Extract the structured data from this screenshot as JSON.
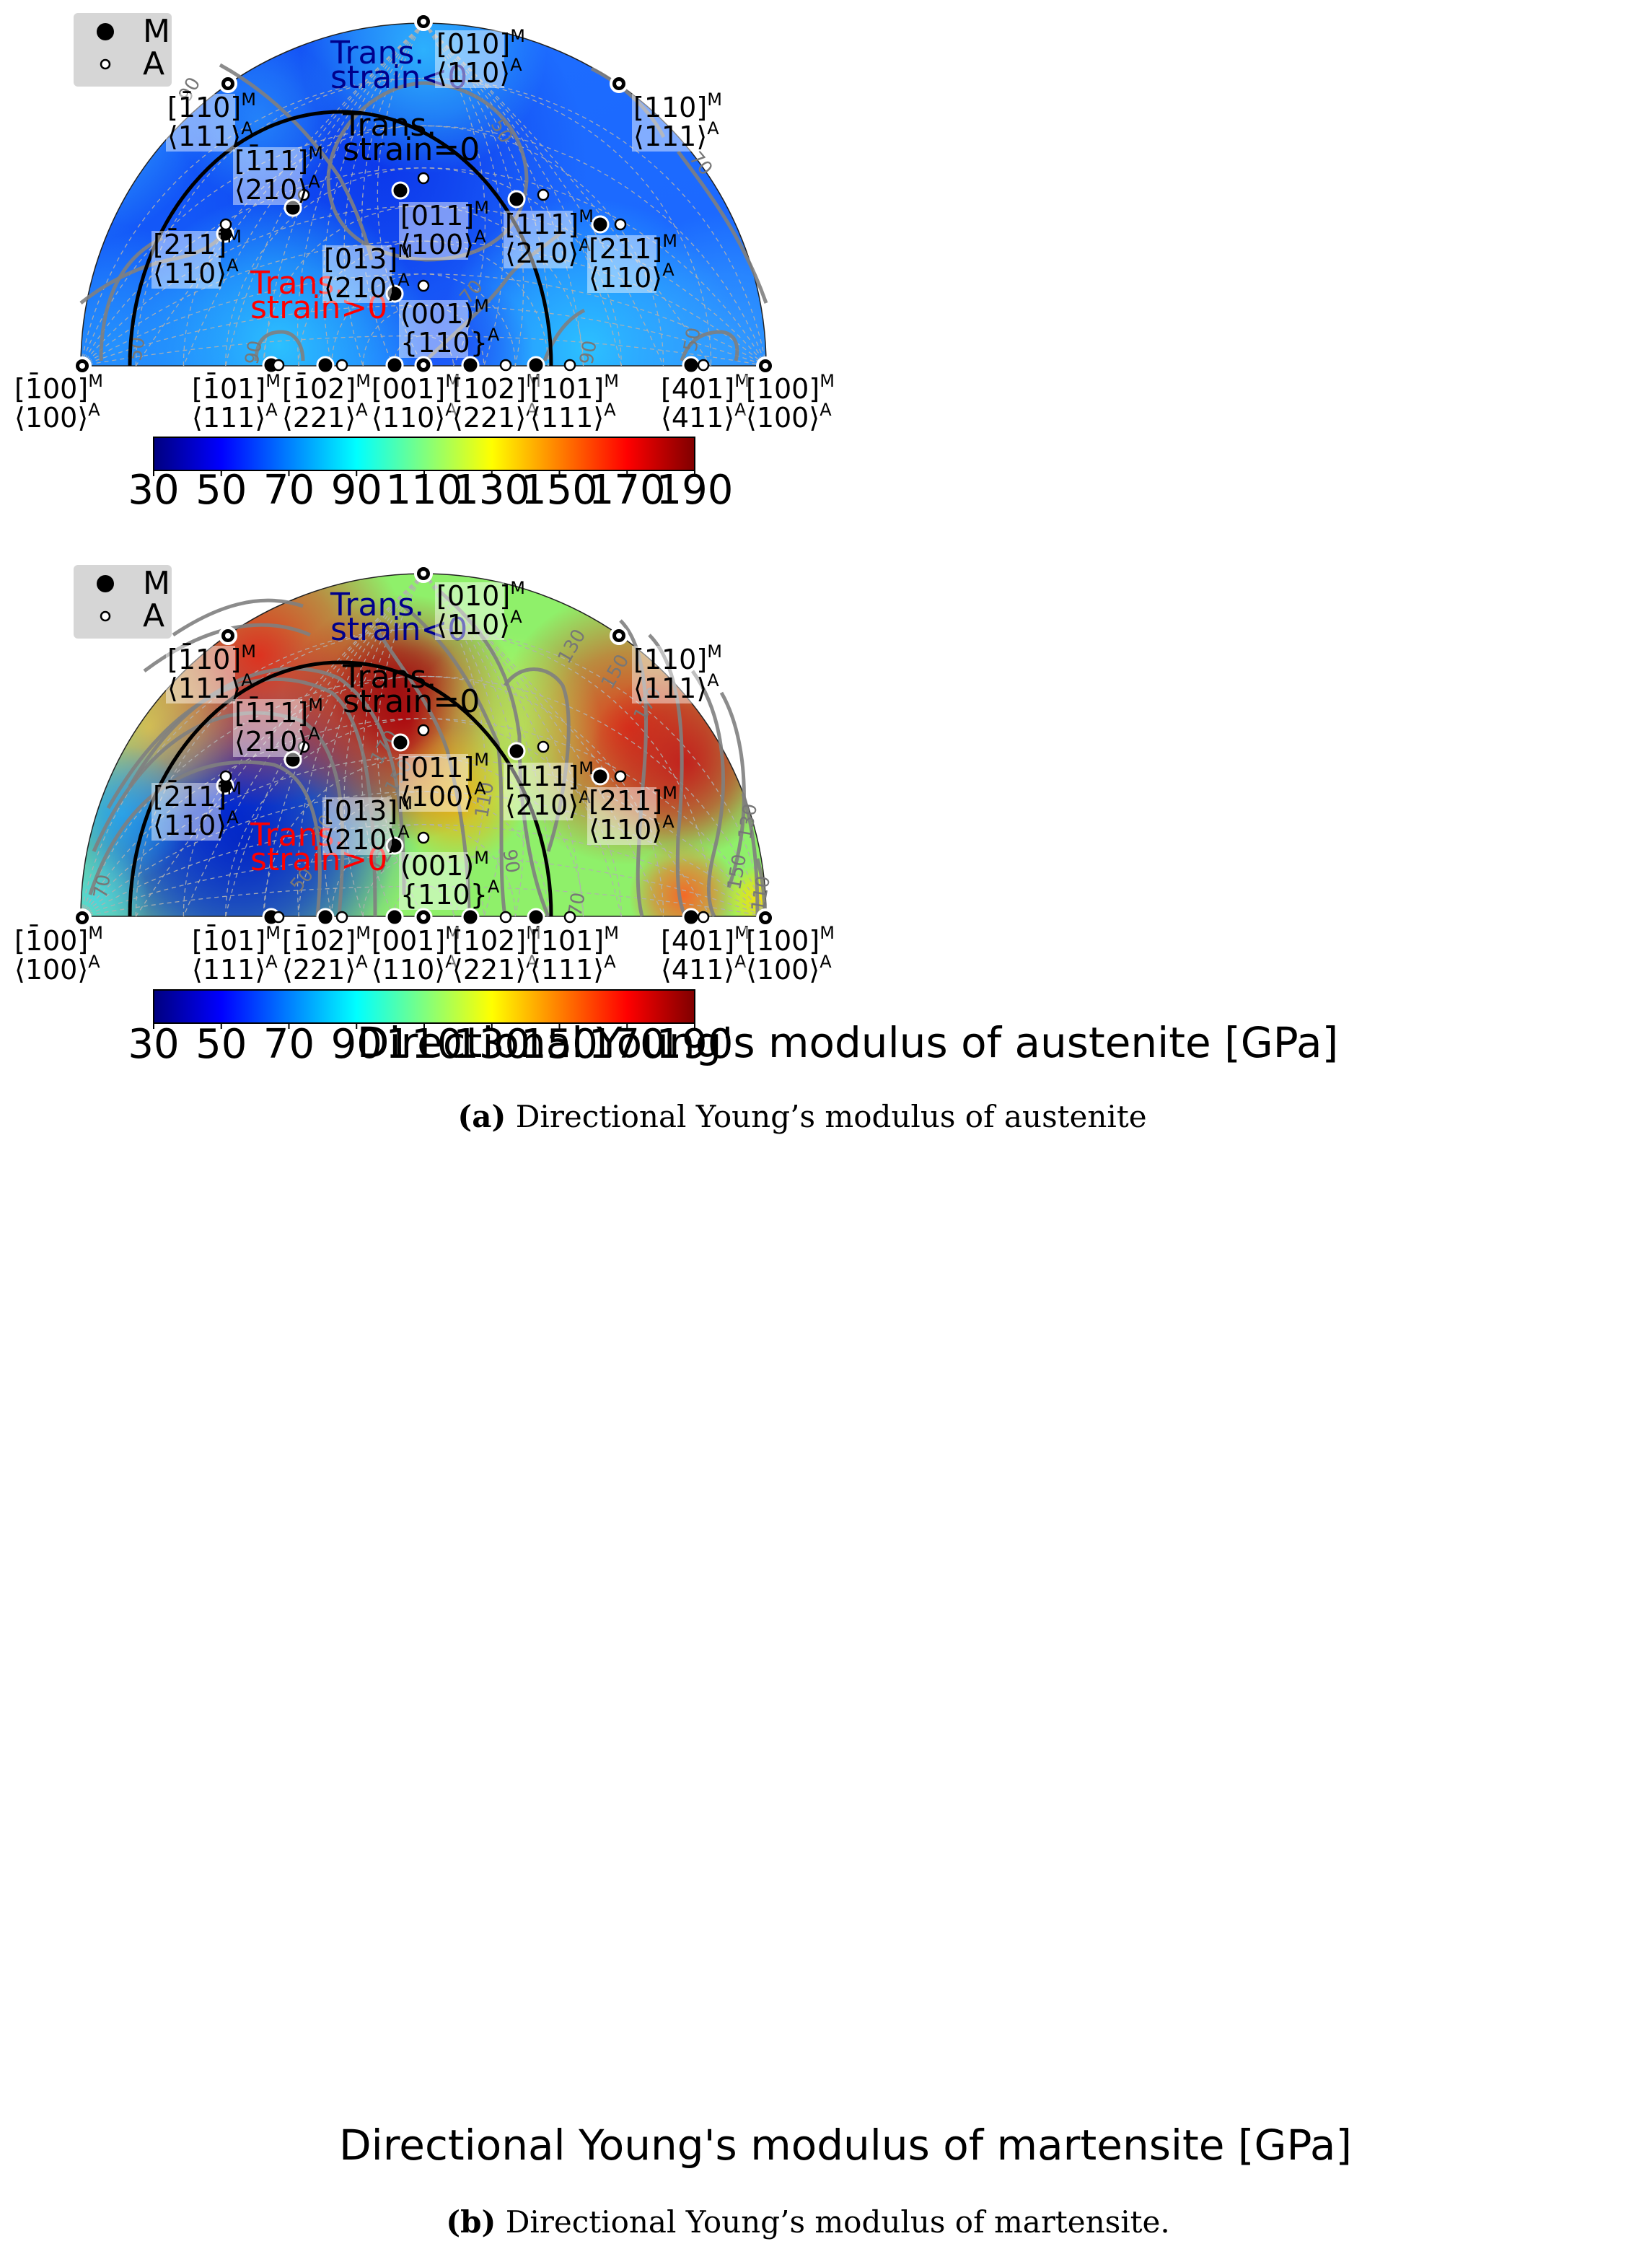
{
  "colors": {
    "m_marker": "#000000",
    "a_marker": "#ffffff",
    "contour": "#808080",
    "boundary_arc": "#000000",
    "label_box": "#ffffff",
    "negative_strain_text": "#00008b",
    "zero_strain_text": "#000000",
    "positive_strain_text": "#ff0000",
    "colormap": [
      "#00007f",
      "#0000ff",
      "#007fff",
      "#00ffff",
      "#7fff7f",
      "#ffff00",
      "#ff7f00",
      "#ff0000",
      "#7f0000"
    ]
  },
  "legend": {
    "m": {
      "marker": "filled-black-circle",
      "text": "M"
    },
    "a": {
      "marker": "open-white-circle",
      "text": "A"
    }
  },
  "region_labels": [
    {
      "key": "neg",
      "lines": [
        "Trans.",
        "strain<0"
      ]
    },
    {
      "key": "zero",
      "lines": [
        "Trans.",
        "strain=0"
      ]
    },
    {
      "key": "pos",
      "lines": [
        "Trans.",
        "strain>0"
      ]
    }
  ],
  "orientations": [
    {
      "key": "m100neg",
      "m": "[1̄00]",
      "a": "⟨100⟩"
    },
    {
      "key": "m101neg",
      "m": "[1̄01]",
      "a": "⟨111⟩"
    },
    {
      "key": "m102neg",
      "m": "[1̄02]",
      "a": "⟨221⟩"
    },
    {
      "key": "m001",
      "m": "[001]",
      "a": "⟨110⟩"
    },
    {
      "key": "m102",
      "m": "[102]",
      "a": "⟨221⟩"
    },
    {
      "key": "m101",
      "m": "[101]",
      "a": "⟨111⟩"
    },
    {
      "key": "m401",
      "m": "[401]",
      "a": "⟨411⟩"
    },
    {
      "key": "m100",
      "m": "[100]",
      "a": "⟨100⟩"
    },
    {
      "key": "m010",
      "m": "[010]",
      "a": "⟨110⟩"
    },
    {
      "key": "m110neg",
      "m": "[1̄10]",
      "a": "⟨111⟩"
    },
    {
      "key": "m110",
      "m": "[110]",
      "a": "⟨111⟩"
    },
    {
      "key": "m111neg",
      "m": "[1̄11]",
      "a": "⟨210⟩"
    },
    {
      "key": "m011",
      "m": "[011]",
      "a": "⟨100⟩"
    },
    {
      "key": "m111",
      "m": "[111]",
      "a": "⟨210⟩"
    },
    {
      "key": "m211neg",
      "m": "[2̄11]",
      "a": "⟨110⟩"
    },
    {
      "key": "m211",
      "m": "[211]",
      "a": "⟨110⟩"
    },
    {
      "key": "m013",
      "m": "[013]",
      "a": "⟨210⟩"
    },
    {
      "key": "m001p",
      "m": "(001)",
      "a": "{110}"
    }
  ],
  "chart_data": [
    {
      "type": "heatmap",
      "projection": "stereographic half-disk (upper hemisphere)",
      "quantity": "Directional Young's modulus of austenite",
      "colorbar_label": "Directional Young's modulus of austenite [GPa]",
      "colorbar_ticks": [
        30,
        50,
        70,
        90,
        110,
        130,
        150,
        170,
        190
      ],
      "colorbar_range": [
        30,
        190
      ],
      "colormap": "jet",
      "contour_labels": [
        50,
        70,
        90
      ],
      "approx_value_range": [
        40,
        95
      ],
      "caption_bold": "(a)",
      "caption_text": "Directional Young’s modulus of austenite",
      "grid": true
    },
    {
      "type": "heatmap",
      "projection": "stereographic half-disk (upper hemisphere)",
      "quantity": "Directional Young's modulus of martensite",
      "colorbar_label": "Directional Young's modulus of martensite [GPa]",
      "colorbar_ticks": [
        30,
        50,
        70,
        90,
        110,
        130,
        150,
        170,
        190
      ],
      "colorbar_range": [
        30,
        190
      ],
      "colormap": "jet",
      "contour_labels": [
        20,
        50,
        70,
        90,
        110,
        130,
        150,
        170
      ],
      "approx_value_range": [
        35,
        185
      ],
      "caption_bold": "(b)",
      "caption_text": "Directional Young’s modulus of martensite.",
      "grid": true
    }
  ]
}
